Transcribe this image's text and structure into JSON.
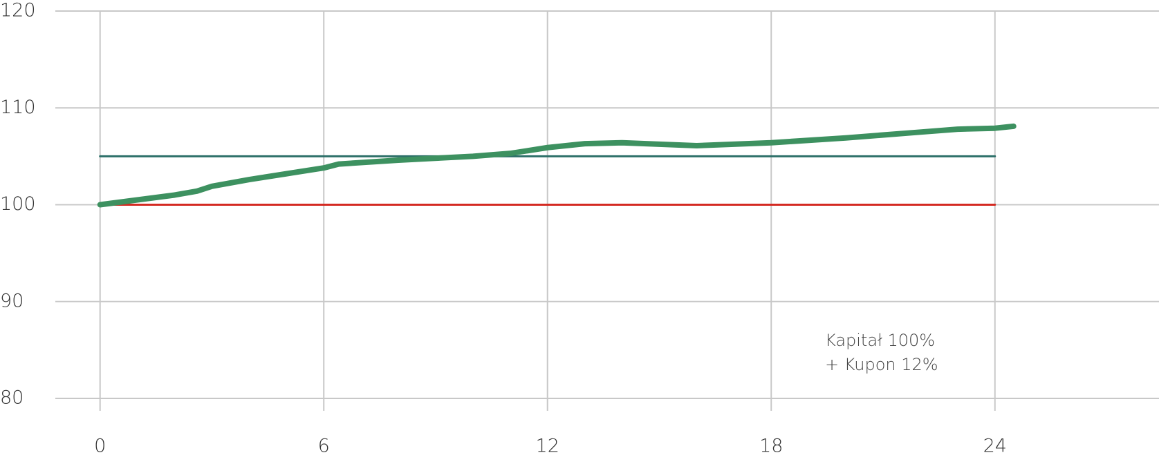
{
  "chart_data": {
    "type": "line",
    "xlim": [
      -1.2,
      28.4
    ],
    "ylim": [
      80,
      120
    ],
    "xticks": [
      0,
      6,
      12,
      18,
      24
    ],
    "yticks": [
      80,
      90,
      100,
      110,
      120
    ],
    "grid": true,
    "series": [
      {
        "color": "#2b6f68",
        "x": [
          0,
          24
        ],
        "values": [
          105,
          105
        ]
      },
      {
        "color": "#d42a22",
        "x": [
          0,
          24
        ],
        "values": [
          100,
          100
        ]
      },
      {
        "color": "#3d9160",
        "x": [
          0,
          1,
          2,
          2.6,
          3,
          4,
          5,
          6,
          6.4,
          8,
          10,
          11,
          12,
          13,
          14,
          16,
          18,
          20,
          22,
          23,
          24,
          24.5
        ],
        "values": [
          100,
          100.5,
          101,
          101.4,
          101.9,
          102.6,
          103.2,
          103.8,
          104.2,
          104.6,
          105,
          105.3,
          105.9,
          106.3,
          106.4,
          106.1,
          106.4,
          106.9,
          107.5,
          107.8,
          107.9,
          108.1
        ]
      }
    ],
    "annotations": [
      "Kapitał 100%",
      "+ Kupon 12%"
    ]
  }
}
